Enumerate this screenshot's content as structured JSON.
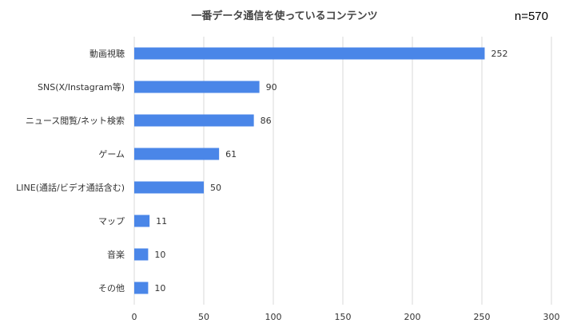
{
  "chart_data": {
    "type": "bar",
    "orientation": "horizontal",
    "title": "一番データ通信を使っているコンテンツ",
    "annotation": "n=570",
    "categories": [
      "動画視聴",
      "SNS(X/Instagram等)",
      "ニュース閲覧/ネット検索",
      "ゲーム",
      "LINE(通話/ビデオ通話含む)",
      "マップ",
      "音楽",
      "その他"
    ],
    "values": [
      252,
      90,
      86,
      61,
      50,
      11,
      10,
      10
    ],
    "xlim": [
      0,
      300
    ],
    "xticks": [
      0,
      50,
      100,
      150,
      200,
      250,
      300
    ],
    "grid": "vertical",
    "legend": "none",
    "bar_color": "#4a86e8"
  }
}
